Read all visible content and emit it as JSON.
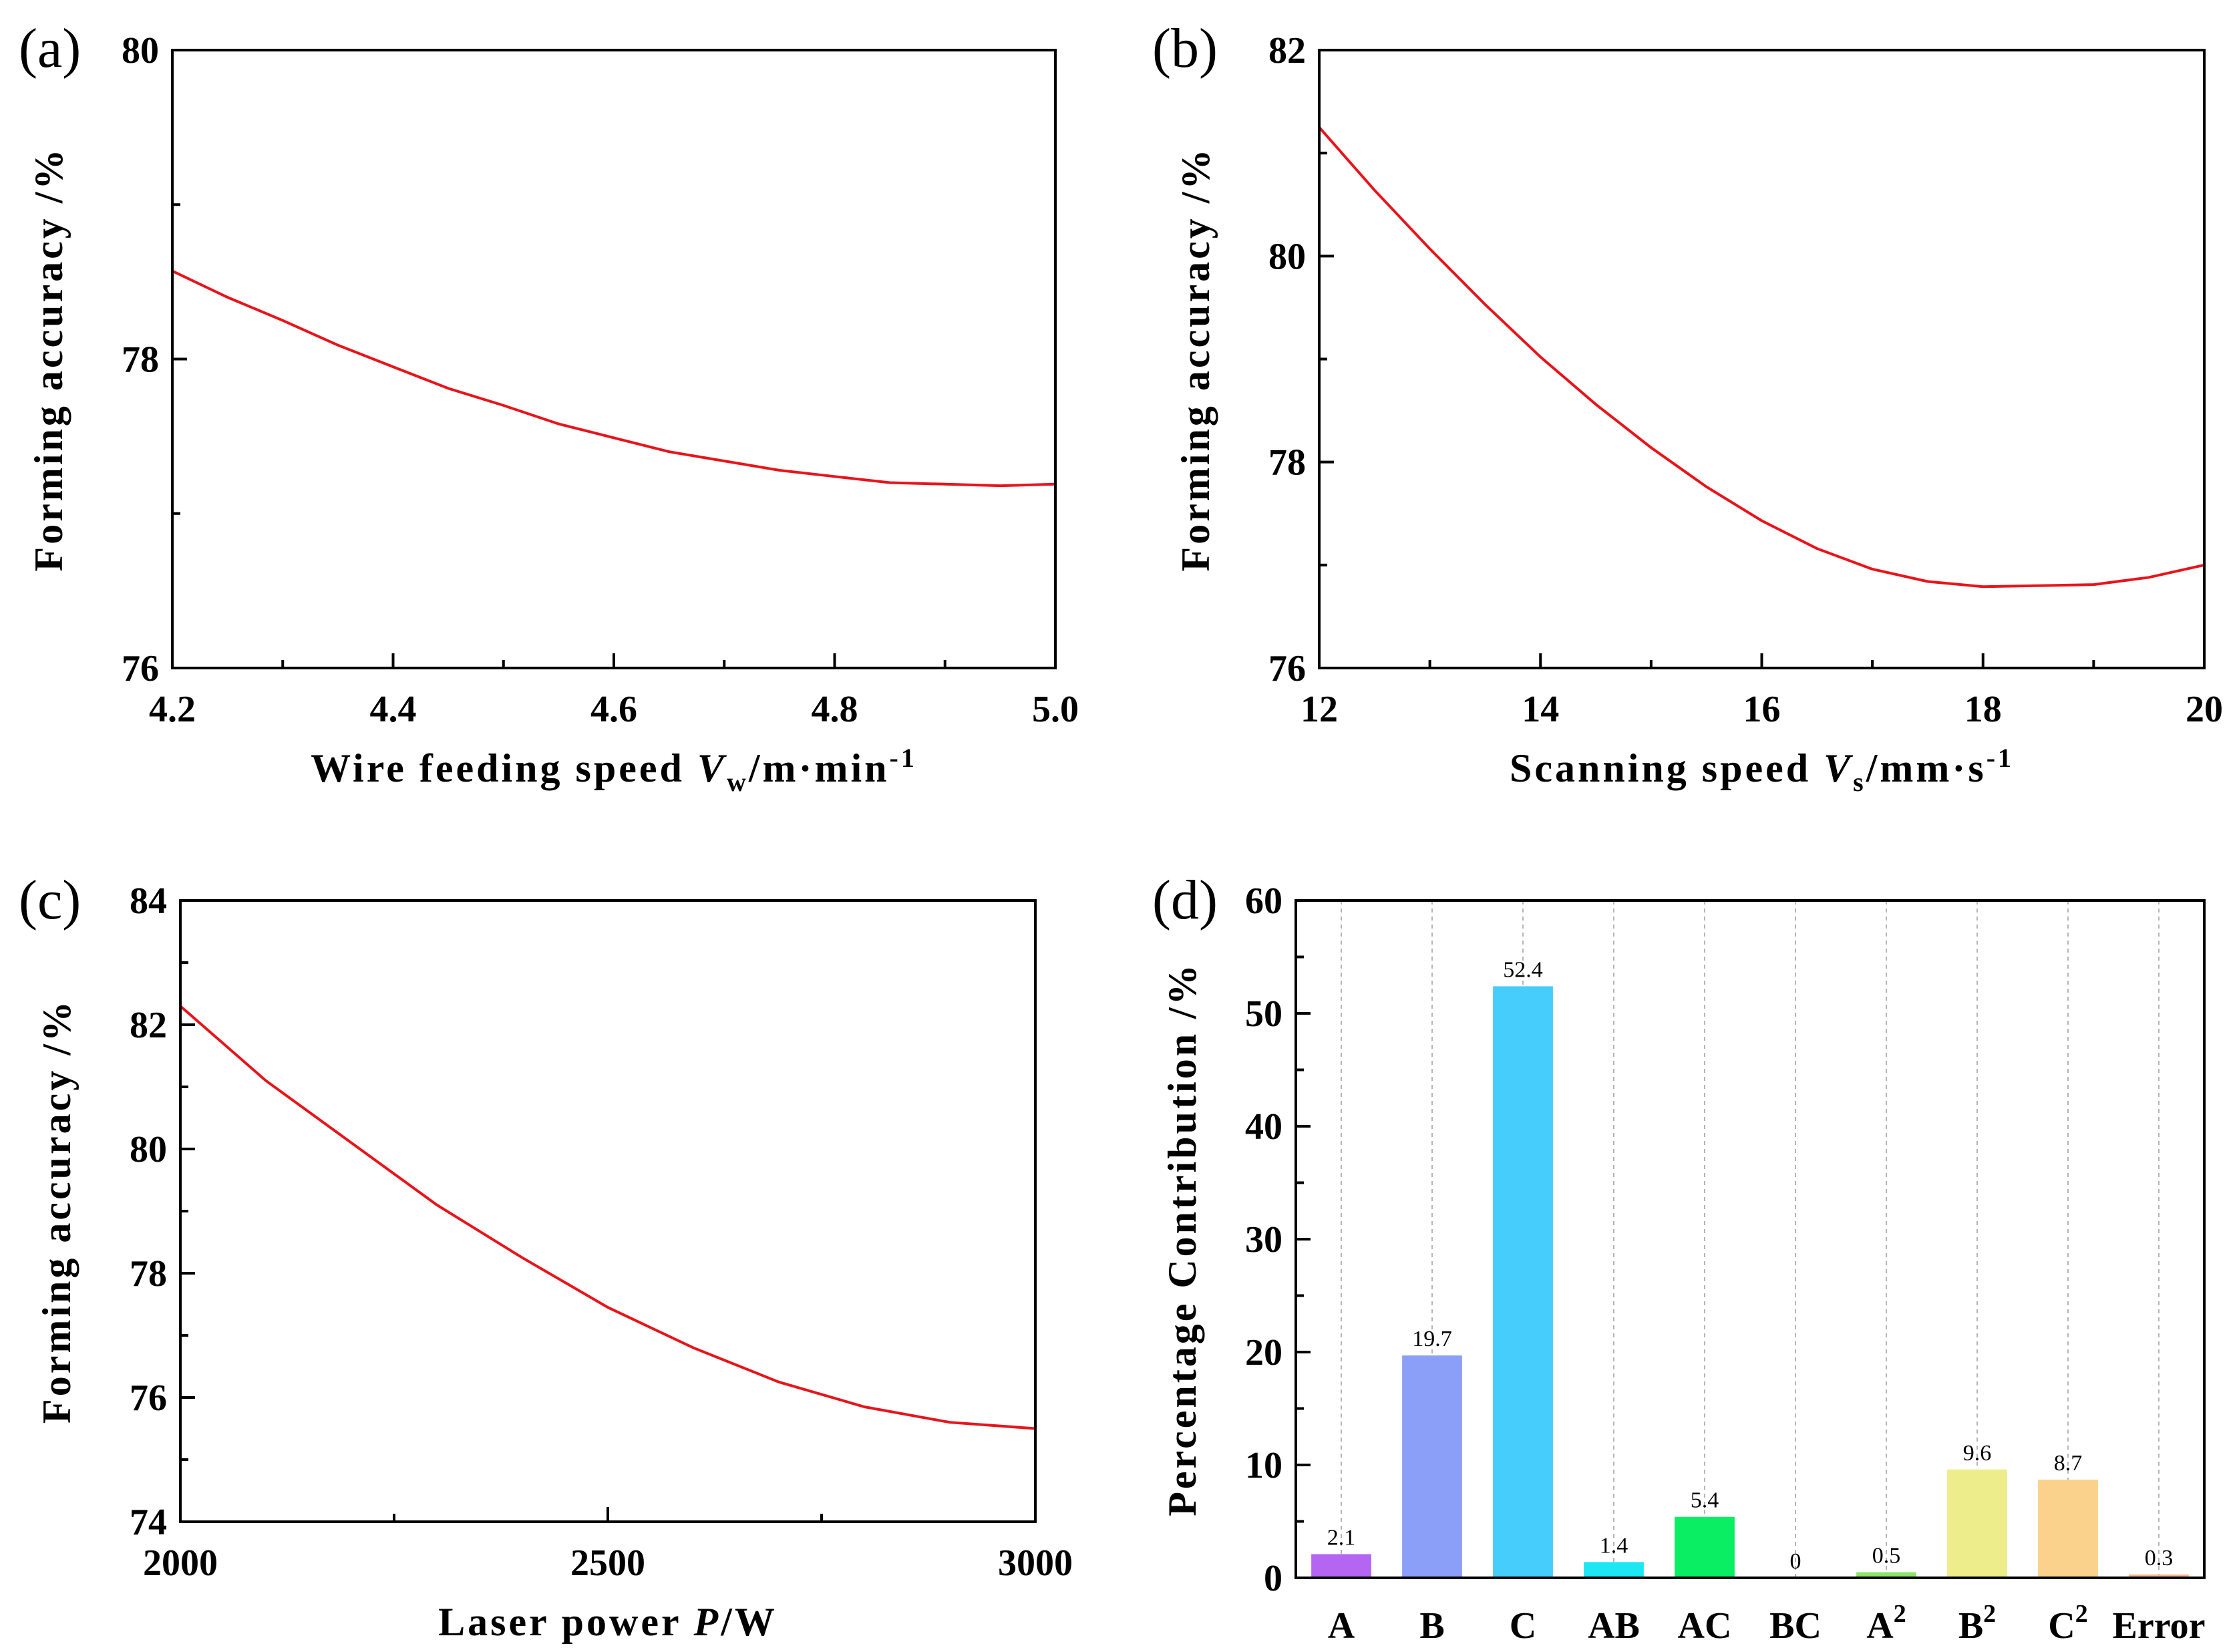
{
  "chart_data": [
    {
      "id": "a",
      "panel_label": "(a)",
      "type": "line",
      "xlabel": {
        "prefix": "Wire feeding speed ",
        "var": "V",
        "sub": "w",
        "unit": "/m·min",
        "sup": "-1"
      },
      "ylabel": "Forming accuracy /%",
      "xlim": [
        4.2,
        5.0
      ],
      "ylim": [
        76,
        80
      ],
      "xticks": [
        "4.2",
        "4.4",
        "4.6",
        "4.8",
        "5.0"
      ],
      "yticks": [
        "76",
        "78",
        "80"
      ],
      "x": [
        4.2,
        4.25,
        4.3,
        4.35,
        4.4,
        4.45,
        4.5,
        4.55,
        4.6,
        4.65,
        4.7,
        4.75,
        4.8,
        4.85,
        4.9,
        4.95,
        5.0
      ],
      "y": [
        78.57,
        78.4,
        78.25,
        78.09,
        77.95,
        77.81,
        77.7,
        77.58,
        77.49,
        77.4,
        77.34,
        77.28,
        77.24,
        77.2,
        77.19,
        77.18,
        77.19
      ]
    },
    {
      "id": "b",
      "panel_label": "(b)",
      "type": "line",
      "xlabel": {
        "prefix": "Scanning speed ",
        "var": "V",
        "sub": "s",
        "unit": "/mm·s",
        "sup": "-1"
      },
      "ylabel": "Forming accuracy /%",
      "xlim": [
        12,
        20
      ],
      "ylim": [
        76,
        82
      ],
      "xticks": [
        "12",
        "14",
        "16",
        "18",
        "20"
      ],
      "yticks": [
        "76",
        "78",
        "80",
        "82"
      ],
      "x": [
        12,
        12.5,
        13,
        13.5,
        14,
        14.5,
        15,
        15.5,
        16,
        16.5,
        17,
        17.5,
        18,
        18.5,
        19,
        19.5,
        20
      ],
      "y": [
        81.25,
        80.64,
        80.07,
        79.53,
        79.02,
        78.56,
        78.14,
        77.76,
        77.43,
        77.16,
        76.96,
        76.84,
        76.79,
        76.8,
        76.81,
        76.88,
        77.0
      ]
    },
    {
      "id": "c",
      "panel_label": "(c)",
      "type": "line",
      "xlabel": {
        "prefix": "Laser power ",
        "var": "P",
        "sub": "",
        "unit": "/W",
        "sup": ""
      },
      "ylabel": "Forming accuracy /%",
      "xlim": [
        2000,
        3000
      ],
      "ylim": [
        74,
        84
      ],
      "xticks": [
        "2000",
        "2500",
        "3000"
      ],
      "yticks": [
        "74",
        "76",
        "78",
        "80",
        "82",
        "84"
      ],
      "x": [
        2000,
        2100,
        2200,
        2300,
        2400,
        2500,
        2600,
        2700,
        2800,
        2900,
        3000
      ],
      "y": [
        82.3,
        81.1,
        80.1,
        79.1,
        78.25,
        77.45,
        76.8,
        76.25,
        75.85,
        75.6,
        75.5
      ]
    },
    {
      "id": "d",
      "panel_label": "(d)",
      "type": "bar",
      "ylabel": "Percentage Contribution /%",
      "ylim": [
        0,
        60
      ],
      "yticks": [
        "0",
        "10",
        "20",
        "30",
        "40",
        "50",
        "60"
      ],
      "categories": [
        {
          "base": "A",
          "sup": ""
        },
        {
          "base": "B",
          "sup": ""
        },
        {
          "base": "C",
          "sup": ""
        },
        {
          "base": "AB",
          "sup": ""
        },
        {
          "base": "AC",
          "sup": ""
        },
        {
          "base": "BC",
          "sup": ""
        },
        {
          "base": "A",
          "sup": "2"
        },
        {
          "base": "B",
          "sup": "2"
        },
        {
          "base": "C",
          "sup": "2"
        },
        {
          "base": "Error",
          "sup": ""
        }
      ],
      "values": [
        2.1,
        19.7,
        52.4,
        1.4,
        5.4,
        0,
        0.5,
        9.6,
        8.7,
        0.3
      ],
      "value_labels": [
        "2.1",
        "19.7",
        "52.4",
        "1.4",
        "5.4",
        "0",
        "0.5",
        "9.6",
        "8.7",
        "0.3"
      ],
      "colors": [
        "#b466f2",
        "#8c9ff8",
        "#46cdfc",
        "#1ee6f2",
        "#0aee64",
        "#ffeb4b",
        "#8ee36a",
        "#eded8c",
        "#fbd28c",
        "#f8b88c"
      ],
      "grid": true
    }
  ]
}
